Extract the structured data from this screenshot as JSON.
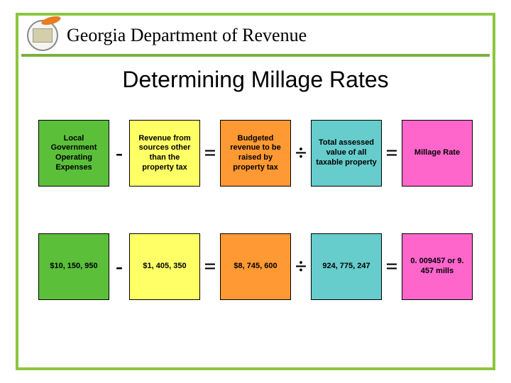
{
  "header": {
    "dept_title": "Georgia Department of Revenue"
  },
  "title": "Determining Millage Rates",
  "colors": {
    "frame": "#8cc63f",
    "hr": "#7bb03a",
    "green": "#5bbf3a",
    "yellow": "#ffff66",
    "orange": "#ff9933",
    "blue": "#66cccc",
    "pink": "#ff66cc"
  },
  "operators": {
    "minus": "-",
    "equals": "=",
    "divide": "÷"
  },
  "row1": {
    "c1": "Local Government Operating Expenses",
    "c2": "Revenue from sources other than the property tax",
    "c3": "Budgeted revenue to be raised by property tax",
    "c4": "Total assessed value of all taxable property",
    "c5": "Millage Rate"
  },
  "row2": {
    "c1": "$10, 150, 950",
    "c2": "$1, 405, 350",
    "c3": "$8, 745, 600",
    "c4": "924, 775, 247",
    "c5": "0. 009457 or 9. 457 mills"
  }
}
